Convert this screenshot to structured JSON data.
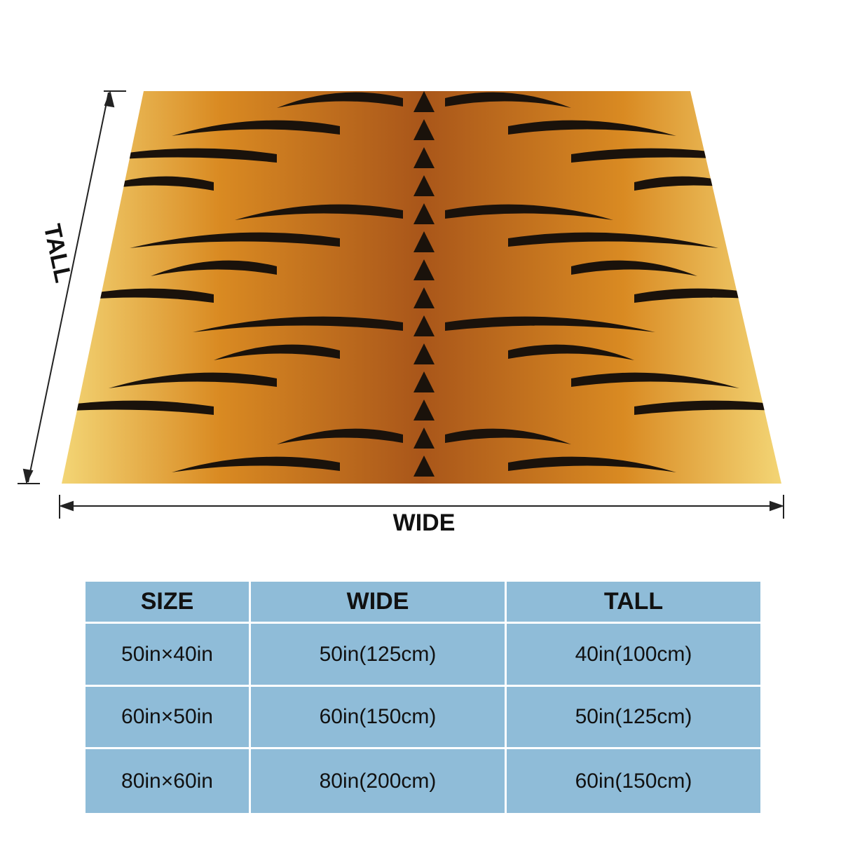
{
  "diagram": {
    "tall_label": "TALL",
    "wide_label": "WIDE"
  },
  "table": {
    "header": [
      "SIZE",
      "WIDE",
      "TALL"
    ],
    "rows": [
      [
        "50in×40in",
        "50in(125cm)",
        "40in(100cm)"
      ],
      [
        "60in×50in",
        "60in(150cm)",
        "50in(125cm)"
      ],
      [
        "80in×60in",
        "80in(200cm)",
        "60in(150cm)"
      ]
    ]
  }
}
